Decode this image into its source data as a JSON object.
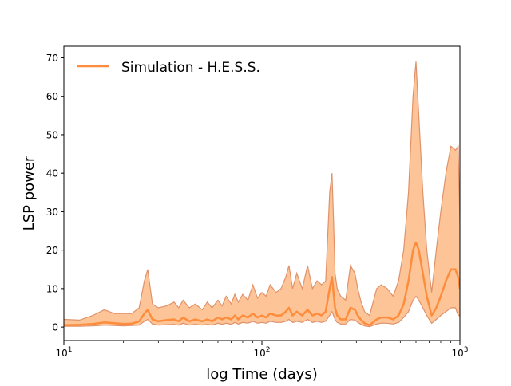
{
  "chart_data": {
    "type": "line",
    "xscale": "log",
    "xlabel": "log Time (days)",
    "ylabel": "LSP power",
    "xlim": [
      10,
      1000
    ],
    "ylim": [
      -3.5,
      73
    ],
    "grid": false,
    "legend_position": "top-left",
    "x_ticks": [
      {
        "value": 10,
        "label_base": "10",
        "label_exp": "1"
      },
      {
        "value": 100,
        "label_base": "10",
        "label_exp": "2"
      },
      {
        "value": 1000,
        "label_base": "10",
        "label_exp": "3"
      }
    ],
    "y_ticks": [
      0,
      10,
      20,
      30,
      40,
      50,
      60,
      70
    ],
    "y_tick_labels": [
      "0",
      "10",
      "20",
      "30",
      "40",
      "50",
      "60",
      "70"
    ],
    "series": [
      {
        "name": "Simulation - H.E.S.S.",
        "color": "#fd8d3c",
        "band_fill": "#fdc597",
        "band_edge": "#e0916a",
        "x": [
          10,
          12,
          14,
          16,
          18,
          20,
          22,
          24,
          25.5,
          26.5,
          28,
          30,
          33,
          36,
          38,
          40,
          43,
          46,
          50,
          53,
          56,
          60,
          63,
          66,
          70,
          73,
          76,
          80,
          85,
          90,
          95,
          100,
          105,
          110,
          118,
          125,
          132,
          137,
          143,
          150,
          160,
          170,
          180,
          190,
          200,
          210,
          220,
          226,
          230,
          234,
          240,
          250,
          265,
          280,
          295,
          305,
          315,
          330,
          350,
          380,
          400,
          430,
          460,
          490,
          520,
          550,
          580,
          600,
          620,
          650,
          680,
          720,
          760,
          800,
          850,
          900,
          950,
          980,
          1000
        ],
        "upper": [
          2,
          1.8,
          3,
          4.5,
          3.5,
          3.5,
          3.5,
          5,
          12,
          15,
          6,
          5,
          5.5,
          6.5,
          5,
          7,
          5,
          6,
          4.5,
          6.5,
          5,
          7,
          5.5,
          8,
          6,
          8.5,
          6.5,
          8.5,
          7,
          11,
          7.5,
          9,
          8,
          11,
          9,
          10,
          13,
          16,
          10,
          14,
          10,
          16,
          10,
          12,
          11,
          12,
          35,
          40,
          28,
          14,
          10,
          8,
          7,
          16,
          14,
          10,
          7,
          4,
          3,
          10,
          11,
          10,
          8,
          12,
          20,
          35,
          60,
          69,
          55,
          35,
          20,
          9,
          20,
          30,
          40,
          47,
          46,
          47,
          27
        ],
        "mean": [
          0.5,
          0.6,
          0.8,
          1.2,
          1.0,
          0.8,
          0.9,
          1.5,
          3.5,
          4.5,
          2,
          1.5,
          1.8,
          2,
          1.5,
          2.5,
          1.5,
          2,
          1.5,
          2,
          1.5,
          2.5,
          2,
          2.5,
          2,
          3,
          2,
          3,
          2.5,
          3.5,
          2.5,
          3,
          2.5,
          3.5,
          3,
          3,
          4,
          5,
          3,
          4,
          3,
          4.5,
          3,
          3.5,
          3,
          4,
          10,
          13,
          9,
          5,
          3,
          2,
          2,
          5,
          4.5,
          3,
          2,
          1,
          0.5,
          2,
          2.5,
          2.5,
          2,
          3,
          6,
          12,
          20,
          22,
          20,
          14,
          8,
          3,
          5,
          8,
          12,
          15,
          15,
          13,
          10
        ],
        "lower": [
          0.2,
          0.2,
          0.3,
          0.5,
          0.4,
          0.3,
          0.4,
          0.5,
          1.5,
          2,
          0.8,
          0.5,
          0.6,
          0.7,
          0.5,
          1,
          0.5,
          0.7,
          0.5,
          0.7,
          0.5,
          1,
          0.7,
          1,
          0.7,
          1.2,
          0.8,
          1.2,
          1,
          1.5,
          1,
          1.2,
          1,
          1.5,
          1.2,
          1.2,
          1.5,
          2,
          1.2,
          1.5,
          1.2,
          2,
          1.2,
          1.5,
          1.2,
          1.5,
          3,
          4,
          3,
          2,
          1.2,
          0.8,
          0.8,
          2,
          1.8,
          1.2,
          0.8,
          0.3,
          0.1,
          0.8,
          1,
          1,
          0.8,
          1.2,
          2.5,
          4,
          7,
          8,
          7,
          5,
          3,
          1,
          2,
          3,
          4,
          5,
          5,
          3,
          3
        ]
      }
    ]
  }
}
